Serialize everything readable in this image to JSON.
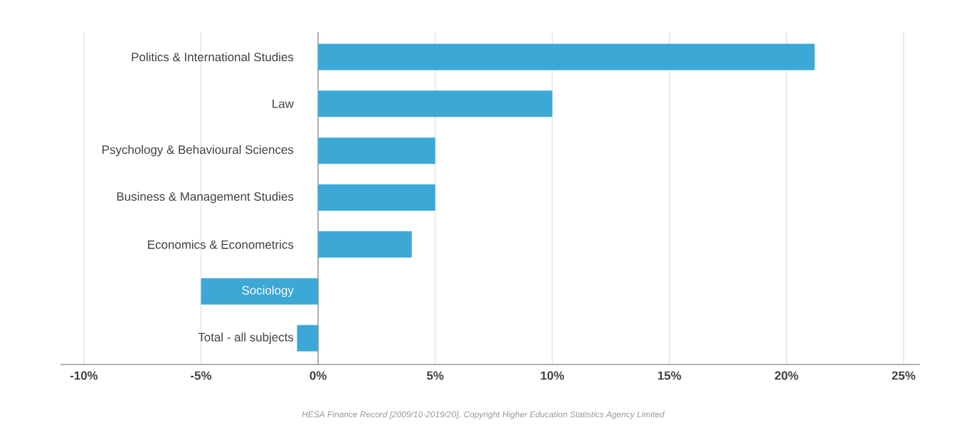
{
  "chart_data": {
    "type": "bar",
    "orientation": "horizontal",
    "categories": [
      "Politics & International Studies",
      "Law",
      "Psychology & Behavioural Sciences",
      "Business & Management Studies",
      "Economics & Econometrics",
      "Sociology",
      "Total - all subjects"
    ],
    "values": [
      21.2,
      10,
      5,
      5,
      4,
      -5,
      -0.9
    ],
    "color": "#3ca8d6",
    "xlim": [
      -11,
      25.7
    ],
    "xticks": [
      {
        "value": -10,
        "label": "-10%"
      },
      {
        "value": -5,
        "label": "-5%"
      },
      {
        "value": 0,
        "label": "0%"
      },
      {
        "value": 5,
        "label": "5%"
      },
      {
        "value": 10,
        "label": "10%"
      },
      {
        "value": 15,
        "label": "15%"
      },
      {
        "value": 20,
        "label": "20%"
      },
      {
        "value": 25,
        "label": "25%"
      }
    ],
    "grid": "x",
    "annotations": [
      "HESA Finance Record [2009/10-2019/20], Copyright Higher Education Statistics Agency Limited"
    ]
  }
}
